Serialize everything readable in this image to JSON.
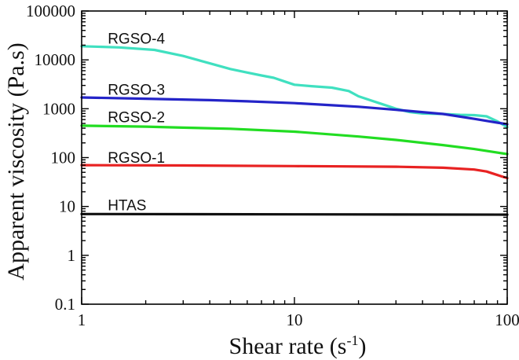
{
  "chart_data": {
    "type": "line",
    "title": "",
    "xlabel": "Shear rate (s",
    "xlabel_sup": "-1",
    "xlabel_tail": ")",
    "ylabel": "Apparent viscosity (Pa.s)",
    "xscale": "log",
    "yscale": "log",
    "xlim": [
      1,
      100
    ],
    "ylim": [
      0.1,
      100000
    ],
    "grid": false,
    "x_ticks": [
      {
        "value": 1,
        "label": "1"
      },
      {
        "value": 10,
        "label": "10"
      },
      {
        "value": 100,
        "label": "100"
      }
    ],
    "y_ticks": [
      {
        "value": 0.1,
        "label": "0.1"
      },
      {
        "value": 1,
        "label": "1"
      },
      {
        "value": 10,
        "label": "10"
      },
      {
        "value": 100,
        "label": "100"
      },
      {
        "value": 1000,
        "label": "1000"
      },
      {
        "value": 10000,
        "label": "10000"
      },
      {
        "value": 100000,
        "label": "100000"
      }
    ],
    "series": [
      {
        "name": "RGSO-4",
        "color": "#40e0c0",
        "label_at": [
          1.1,
          28000
        ],
        "points": [
          [
            1,
            19000
          ],
          [
            1.5,
            18000
          ],
          [
            2.2,
            16000
          ],
          [
            3,
            12000
          ],
          [
            4,
            8500
          ],
          [
            5,
            6500
          ],
          [
            6,
            5500
          ],
          [
            7,
            4800
          ],
          [
            8,
            4300
          ],
          [
            9,
            3600
          ],
          [
            10,
            3100
          ],
          [
            12,
            2900
          ],
          [
            15,
            2700
          ],
          [
            18,
            2300
          ],
          [
            20,
            1800
          ],
          [
            25,
            1300
          ],
          [
            30,
            1000
          ],
          [
            35,
            850
          ],
          [
            40,
            800
          ],
          [
            50,
            780
          ],
          [
            60,
            750
          ],
          [
            70,
            740
          ],
          [
            80,
            700
          ],
          [
            90,
            550
          ],
          [
            100,
            420
          ]
        ]
      },
      {
        "name": "RGSO-3",
        "color": "#2424c8",
        "label_at": [
          1.1,
          2500
        ],
        "points": [
          [
            1,
            1700
          ],
          [
            2,
            1600
          ],
          [
            4,
            1500
          ],
          [
            6,
            1420
          ],
          [
            10,
            1300
          ],
          [
            15,
            1180
          ],
          [
            20,
            1100
          ],
          [
            30,
            950
          ],
          [
            50,
            780
          ],
          [
            70,
            620
          ],
          [
            100,
            480
          ]
        ]
      },
      {
        "name": "RGSO-2",
        "color": "#22dd22",
        "label_at": [
          1.1,
          690
        ],
        "points": [
          [
            1,
            450
          ],
          [
            2,
            430
          ],
          [
            3,
            410
          ],
          [
            5,
            390
          ],
          [
            10,
            340
          ],
          [
            20,
            270
          ],
          [
            30,
            230
          ],
          [
            50,
            180
          ],
          [
            70,
            150
          ],
          [
            100,
            118
          ]
        ]
      },
      {
        "name": "RGSO-1",
        "color": "#e82222",
        "label_at": [
          1.1,
          102
        ],
        "points": [
          [
            1,
            70
          ],
          [
            3,
            69
          ],
          [
            10,
            67
          ],
          [
            30,
            65
          ],
          [
            50,
            62
          ],
          [
            70,
            57
          ],
          [
            80,
            52
          ],
          [
            90,
            44
          ],
          [
            100,
            38
          ]
        ]
      },
      {
        "name": "HTAS",
        "color": "#111111",
        "label_at": [
          1.1,
          10.8
        ],
        "points": [
          [
            1,
            7
          ],
          [
            10,
            6.9
          ],
          [
            100,
            6.8
          ]
        ]
      }
    ]
  }
}
